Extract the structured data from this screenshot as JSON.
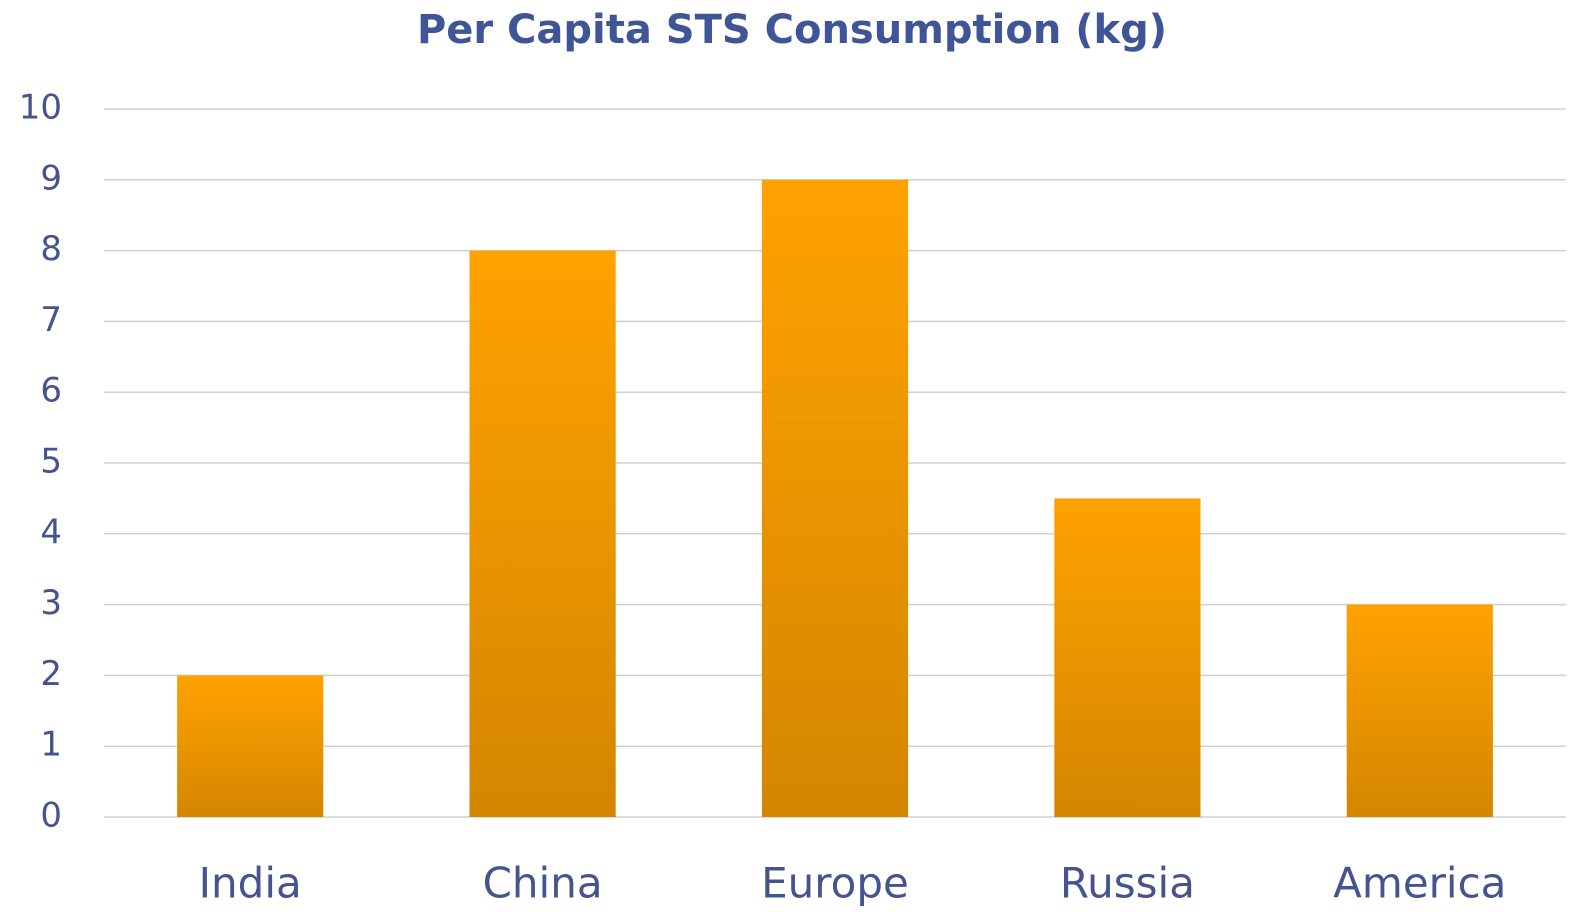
{
  "chart_data": {
    "type": "bar",
    "title": "Per Capita STS Consumption (kg)",
    "categories": [
      "India",
      "China",
      "Europe",
      "Russia",
      "America"
    ],
    "values": [
      2,
      8,
      9,
      4.5,
      3
    ],
    "color": "#ffa200",
    "ylim": [
      0,
      10
    ],
    "yticks": [
      0,
      1,
      2,
      3,
      4,
      5,
      6,
      7,
      8,
      9,
      10
    ],
    "grid": true
  }
}
